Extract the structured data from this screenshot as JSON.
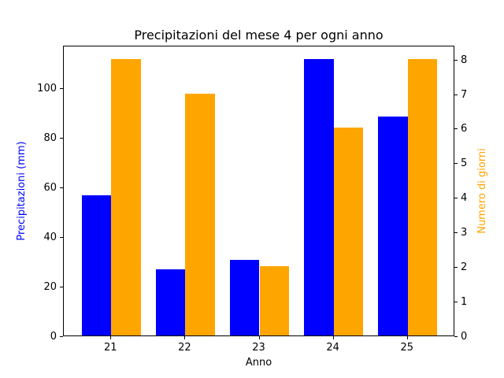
{
  "chart_data": {
    "type": "bar",
    "title": "Precipitazioni del mese 4 per ogni anno",
    "xlabel": "Anno",
    "categories": [
      "21",
      "22",
      "23",
      "24",
      "25"
    ],
    "series": [
      {
        "name": "Precipitazioni (mm)",
        "axis": "left",
        "color": "#0000ff",
        "values": [
          56.4,
          26.5,
          30.3,
          111.4,
          88.2
        ]
      },
      {
        "name": "Numero di giorni",
        "axis": "right",
        "color": "#ffa500",
        "values": [
          8,
          7,
          2,
          6,
          8
        ]
      }
    ],
    "left_axis": {
      "label": "Precipitazioni (mm)",
      "color": "#0000ff",
      "lim": [
        0,
        117
      ],
      "ticks": [
        0,
        20,
        40,
        60,
        80,
        100
      ]
    },
    "right_axis": {
      "label": "Numero di giorni",
      "color": "#ffa500",
      "lim": [
        0,
        8.4
      ],
      "ticks": [
        0,
        1,
        2,
        3,
        4,
        5,
        6,
        7,
        8
      ]
    },
    "x_axis": {
      "label": "Anno",
      "lim": [
        20.36,
        25.64
      ],
      "tick_positions": [
        21,
        22,
        23,
        24,
        25
      ]
    },
    "bar_width_units": 0.4,
    "grid": false,
    "legend": "none",
    "background": "#ffffff",
    "text_color": "#000000"
  }
}
